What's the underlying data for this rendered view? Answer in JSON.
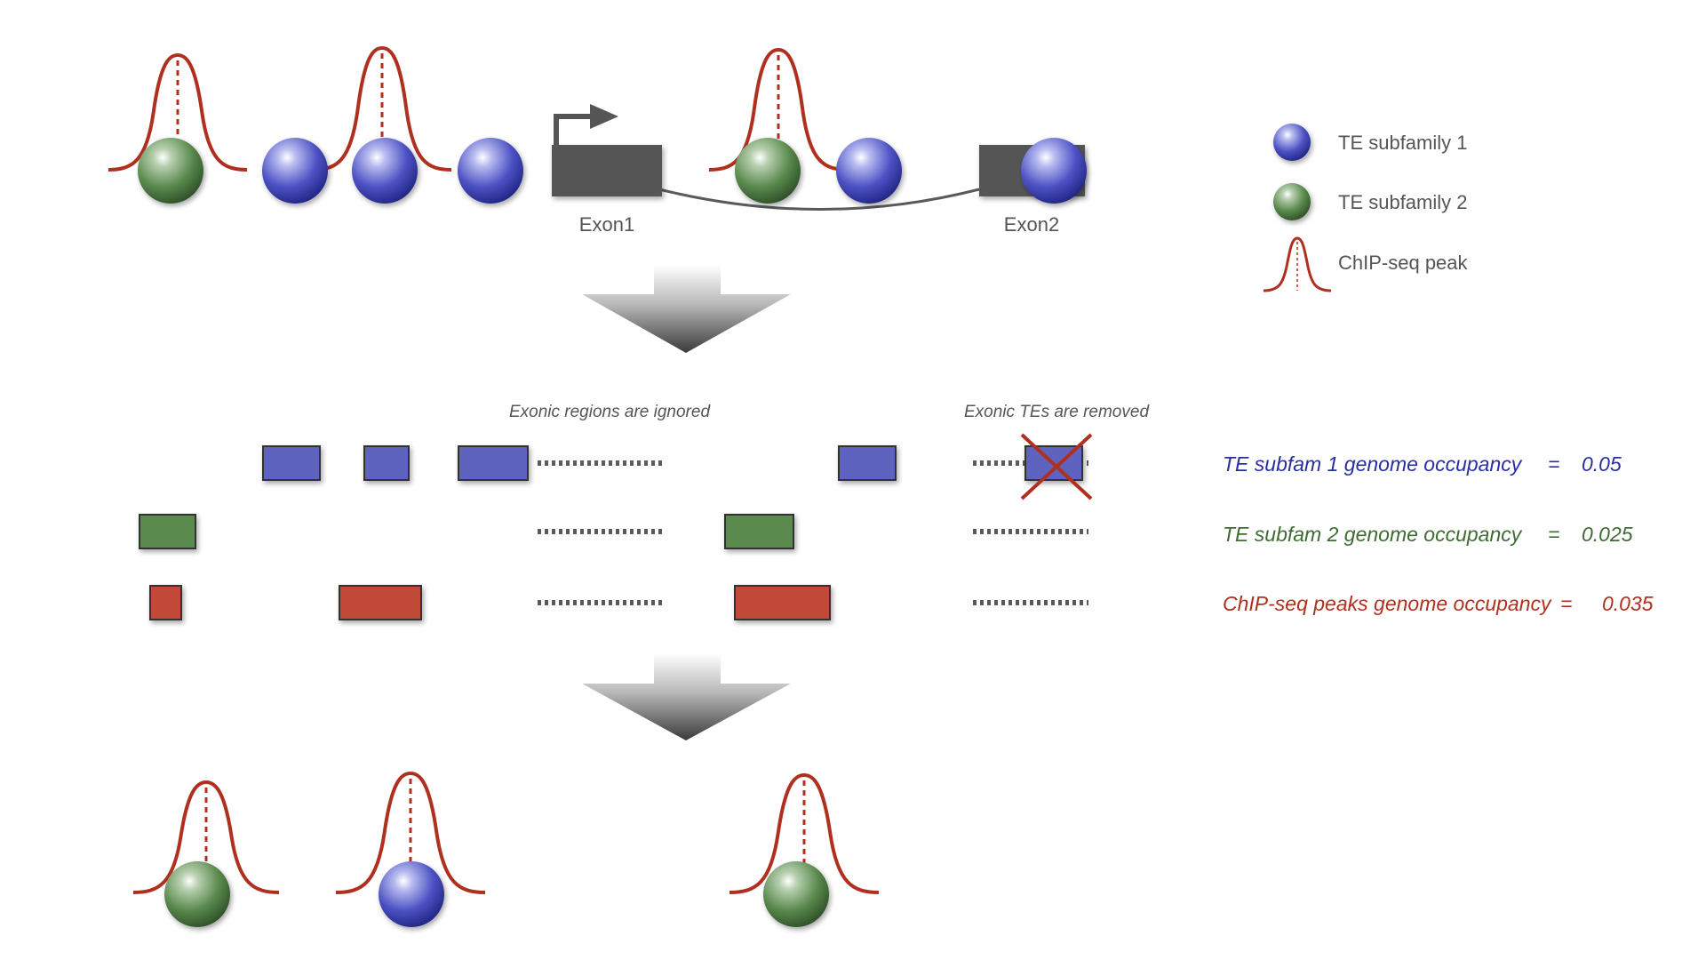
{
  "colors": {
    "te1": "#4a4fb6",
    "te2": "#4f7d45",
    "peak": "#b03020",
    "line": "#5a5a5a",
    "exon": "#555555",
    "text": "#555555"
  },
  "top": {
    "exon1_label": "Exon1",
    "exon2_label": "Exon2"
  },
  "legend": {
    "te1": "TE subfamily 1",
    "te2": "TE subfamily 2",
    "peak": "ChIP-seq peak"
  },
  "middle": {
    "note_exonic_regions": "Exonic regions are ignored",
    "note_exonic_tes": "Exonic TEs are removed",
    "te1_occupancy": {
      "label": "TE subfam 1 genome occupancy",
      "equals": "=",
      "value": "0.05"
    },
    "te2_occupancy": {
      "label": "TE subfam 2 genome occupancy",
      "equals": "=",
      "value": "0.025"
    },
    "peaks_occupancy": {
      "label": "ChIP-seq peaks genome occupancy",
      "equals": "=",
      "value": "0.035"
    }
  }
}
